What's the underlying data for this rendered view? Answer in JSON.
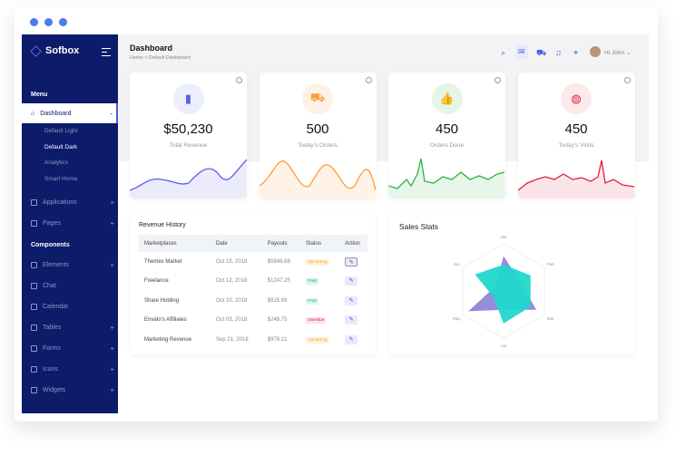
{
  "brand": "Sofbox",
  "sidebar": {
    "menu_heading": "Menu",
    "components_heading": "Components",
    "dashboard": "Dashboard",
    "sub_items": [
      "Default Light",
      "Default Dark",
      "Analytics",
      "Smart Home"
    ],
    "menu_items": [
      {
        "label": "Applications",
        "expand": "+"
      },
      {
        "label": "Pages",
        "expand": "+"
      }
    ],
    "component_items": [
      {
        "label": "Elements",
        "expand": "+"
      },
      {
        "label": "Chat",
        "expand": ""
      },
      {
        "label": "Calendar",
        "expand": ""
      },
      {
        "label": "Tables",
        "expand": "+"
      },
      {
        "label": "Forms",
        "expand": "+"
      },
      {
        "label": "Icons",
        "expand": "+"
      },
      {
        "label": "Widgets",
        "expand": "+"
      }
    ]
  },
  "header": {
    "title": "Dashboard",
    "breadcrumb": "Home > Default Dashboard",
    "user": "Hi John"
  },
  "stats": [
    {
      "value": "$50,230",
      "label": "Total Revenue",
      "icon": "bar-chart-icon",
      "color": "#5b5ee8",
      "bg": "#eceefc"
    },
    {
      "value": "500",
      "label": "Today's Orders",
      "icon": "cart-icon",
      "color": "#ff9a3c",
      "bg": "#fff1e6"
    },
    {
      "value": "450",
      "label": "Orders Done",
      "icon": "thumbs-up-icon",
      "color": "#2fb344",
      "bg": "#e5f6e8"
    },
    {
      "value": "450",
      "label": "Today's Visits",
      "icon": "globe-icon",
      "color": "#e0203a",
      "bg": "#fde8ea"
    }
  ],
  "revenue": {
    "title": "Revenue History",
    "columns": [
      "Marketplaces",
      "Date",
      "Payouts",
      "Status",
      "Action"
    ],
    "rows": [
      {
        "market": "Themes Market",
        "date": "Oct 15, 2018",
        "payout": "$5848.68",
        "status": "Upcoming"
      },
      {
        "market": "Freelance",
        "date": "Oct 12, 2018",
        "payout": "$1247.25",
        "status": "Paid"
      },
      {
        "market": "Share Holding",
        "date": "Oct 10, 2018",
        "payout": "$815.89",
        "status": "Paid"
      },
      {
        "market": "Envato's Affiliates",
        "date": "Oct 03, 2018",
        "payout": "$248.75",
        "status": "Overdue"
      },
      {
        "market": "Marketing Revenue",
        "date": "Sep 21, 2018",
        "payout": "$978.21",
        "status": "Upcoming"
      }
    ]
  },
  "status_colors": {
    "Upcoming": [
      "#fff1dc",
      "#f5a623"
    ],
    "Paid": [
      "#dcf6ec",
      "#1fb47a"
    ],
    "Overdue": [
      "#fde3e6",
      "#e0203a"
    ]
  },
  "chart_data": {
    "type": "radar",
    "title": "Sales Stats",
    "categories": [
      "Jan",
      "Feb",
      "Mar",
      "Apr",
      "May",
      "Jun"
    ],
    "series": [
      {
        "values": [
          74,
          40,
          80,
          40,
          86,
          20
        ],
        "color": "#8f86d8"
      },
      {
        "values": [
          56,
          66,
          66,
          69,
          25,
          70
        ],
        "color": "#1fd8cc"
      }
    ],
    "max": 100
  }
}
